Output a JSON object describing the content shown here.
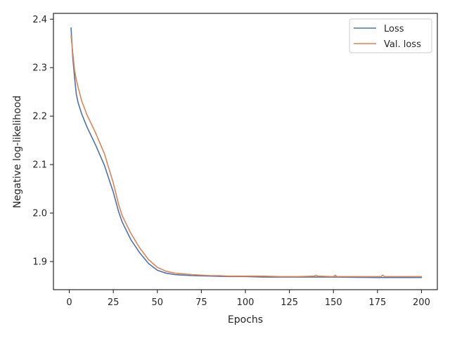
{
  "chart_data": {
    "type": "line",
    "title": "",
    "xlabel": "Epochs",
    "ylabel": "Negative log-likelihood",
    "xlim": [
      -9,
      209
    ],
    "ylim": [
      1.842,
      2.412
    ],
    "xticks": [
      0,
      25,
      50,
      75,
      100,
      125,
      150,
      175,
      200
    ],
    "yticks": [
      1.9,
      2.0,
      2.1,
      2.2,
      2.3,
      2.4
    ],
    "grid": false,
    "legend_position": "top-right",
    "series": [
      {
        "name": "Loss",
        "color": "#4c72b0",
        "points": [
          [
            1,
            2.382
          ],
          [
            2,
            2.32
          ],
          [
            3,
            2.28
          ],
          [
            4,
            2.245
          ],
          [
            5,
            2.228
          ],
          [
            7,
            2.205
          ],
          [
            10,
            2.178
          ],
          [
            15,
            2.14
          ],
          [
            20,
            2.098
          ],
          [
            25,
            2.043
          ],
          [
            28,
            2.003
          ],
          [
            30,
            1.982
          ],
          [
            35,
            1.945
          ],
          [
            40,
            1.918
          ],
          [
            45,
            1.896
          ],
          [
            50,
            1.882
          ],
          [
            55,
            1.876
          ],
          [
            60,
            1.873
          ],
          [
            70,
            1.871
          ],
          [
            80,
            1.87
          ],
          [
            90,
            1.869
          ],
          [
            100,
            1.869
          ],
          [
            110,
            1.868
          ],
          [
            125,
            1.868
          ],
          [
            140,
            1.868
          ],
          [
            150,
            1.868
          ],
          [
            175,
            1.867
          ],
          [
            200,
            1.867
          ]
        ]
      },
      {
        "name": "Val. loss",
        "color": "#dd8452",
        "points": [
          [
            1,
            2.366
          ],
          [
            2,
            2.33
          ],
          [
            3,
            2.295
          ],
          [
            4,
            2.275
          ],
          [
            5,
            2.26
          ],
          [
            7,
            2.232
          ],
          [
            10,
            2.203
          ],
          [
            15,
            2.165
          ],
          [
            20,
            2.122
          ],
          [
            25,
            2.062
          ],
          [
            28,
            2.018
          ],
          [
            30,
            1.995
          ],
          [
            35,
            1.958
          ],
          [
            40,
            1.928
          ],
          [
            45,
            1.904
          ],
          [
            50,
            1.888
          ],
          [
            55,
            1.88
          ],
          [
            60,
            1.876
          ],
          [
            70,
            1.873
          ],
          [
            80,
            1.871
          ],
          [
            85,
            1.871
          ],
          [
            90,
            1.87
          ],
          [
            100,
            1.87
          ],
          [
            110,
            1.87
          ],
          [
            120,
            1.869
          ],
          [
            130,
            1.869
          ],
          [
            139,
            1.87
          ],
          [
            140,
            1.872
          ],
          [
            141,
            1.87
          ],
          [
            150,
            1.869
          ],
          [
            151,
            1.872
          ],
          [
            152,
            1.869
          ],
          [
            165,
            1.869
          ],
          [
            177,
            1.869
          ],
          [
            178,
            1.872
          ],
          [
            179,
            1.869
          ],
          [
            190,
            1.869
          ],
          [
            200,
            1.869
          ]
        ]
      }
    ]
  }
}
